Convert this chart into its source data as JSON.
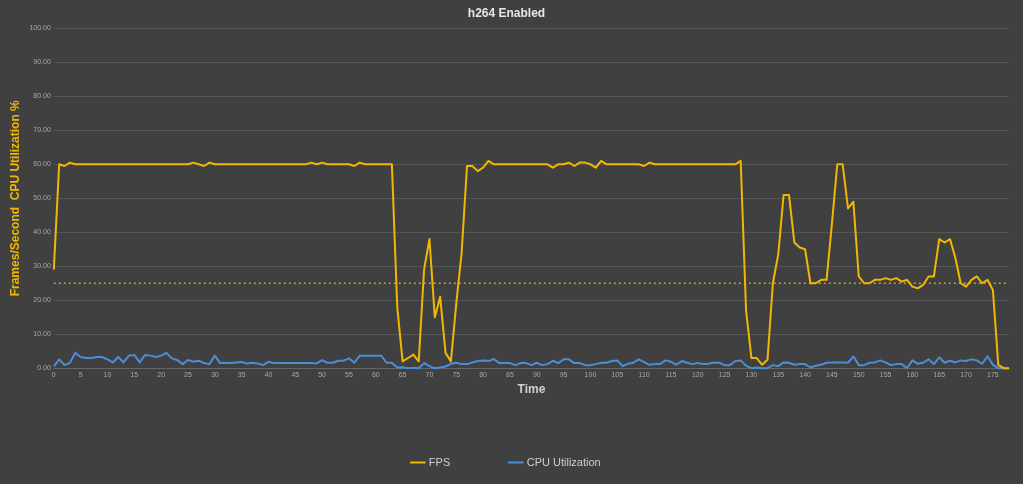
{
  "chart_data": {
    "type": "line",
    "title": "h264 Enabled",
    "xlabel": "Time",
    "ylabel": "Frames/Second  CPU Utilization %",
    "x": [
      0,
      1,
      2,
      3,
      4,
      5,
      6,
      7,
      8,
      9,
      10,
      11,
      12,
      13,
      14,
      15,
      16,
      17,
      18,
      19,
      20,
      21,
      22,
      23,
      24,
      25,
      26,
      27,
      28,
      29,
      30,
      31,
      32,
      33,
      34,
      35,
      36,
      37,
      38,
      39,
      40,
      41,
      42,
      43,
      44,
      45,
      46,
      47,
      48,
      49,
      50,
      51,
      52,
      53,
      54,
      55,
      56,
      57,
      58,
      59,
      60,
      61,
      62,
      63,
      64,
      65,
      66,
      67,
      68,
      69,
      70,
      71,
      72,
      73,
      74,
      75,
      76,
      77,
      78,
      79,
      80,
      81,
      82,
      83,
      84,
      85,
      86,
      87,
      88,
      89,
      90,
      91,
      92,
      93,
      94,
      95,
      96,
      97,
      98,
      99,
      100,
      101,
      102,
      103,
      104,
      105,
      106,
      107,
      108,
      109,
      110,
      111,
      112,
      113,
      114,
      115,
      116,
      117,
      118,
      119,
      120,
      121,
      122,
      123,
      124,
      125,
      126,
      127,
      128,
      129,
      130,
      131,
      132,
      133,
      134,
      135,
      136,
      137,
      138,
      139,
      140,
      141,
      142,
      143,
      144,
      145,
      146,
      147,
      148,
      149,
      150,
      151,
      152,
      153,
      154,
      155,
      156,
      157,
      158,
      159,
      160,
      161,
      162,
      163,
      164,
      165,
      166,
      167,
      168,
      169,
      170,
      171,
      172,
      173,
      174,
      175,
      176,
      177,
      178
    ],
    "series": [
      {
        "name": "FPS",
        "color": "#f2b700",
        "values": [
          29,
          60,
          59.5,
          60.5,
          60,
          60,
          60,
          60,
          60,
          60,
          60,
          60,
          60,
          60,
          60,
          60,
          60,
          60,
          60,
          60,
          60,
          60,
          60,
          60,
          60,
          60,
          60.5,
          60,
          59.5,
          60.5,
          60,
          60,
          60,
          60,
          60,
          60,
          60,
          60,
          60,
          60,
          60,
          60,
          60,
          60,
          60,
          60,
          60,
          60,
          60.5,
          60,
          60.5,
          60,
          60,
          60,
          60,
          60,
          59.5,
          60.5,
          60,
          60,
          60,
          60,
          60,
          60,
          18,
          2,
          3,
          4,
          2,
          29,
          38,
          15,
          21,
          4.5,
          2,
          19,
          34,
          59.5,
          59.5,
          58,
          59,
          61,
          60,
          60,
          60,
          60,
          60,
          60,
          60,
          60,
          60,
          60,
          60,
          59,
          60,
          60,
          60.5,
          59.5,
          60.5,
          60.5,
          60,
          59,
          61,
          60,
          60,
          60,
          60,
          60,
          60,
          60,
          59.5,
          60.5,
          60,
          60,
          60,
          60,
          60,
          60,
          60,
          60,
          60,
          60,
          60,
          60,
          60,
          60,
          60,
          60,
          61,
          17,
          3,
          3,
          1,
          2.5,
          25,
          33.5,
          51,
          51,
          37,
          35.5,
          35,
          25,
          25,
          26,
          26,
          42.5,
          60,
          60,
          47,
          49,
          27,
          25,
          25,
          26,
          26,
          26.5,
          26,
          26.5,
          25.5,
          26,
          24,
          23.5,
          24.5,
          27,
          27,
          38,
          37,
          38,
          32.5,
          25,
          24,
          26,
          27,
          25,
          26,
          23,
          1,
          0,
          0
        ]
      },
      {
        "name": "CPU Utilization",
        "color": "#4a8fd6",
        "values": [
          0.5,
          2.6,
          0.9,
          1.6,
          4.5,
          3.3,
          3,
          3,
          3.3,
          3.3,
          2.6,
          1.7,
          3.3,
          1.7,
          3.7,
          3.9,
          1.7,
          3.9,
          3.7,
          3.3,
          3.7,
          4.5,
          2.9,
          2.4,
          1.2,
          2.4,
          1.9,
          2.2,
          1.5,
          1.2,
          3.7,
          1.5,
          1.6,
          1.5,
          1.7,
          1.8,
          1.4,
          1.6,
          1.4,
          0.9,
          1.9,
          1.5,
          1.5,
          1.5,
          1.5,
          1.5,
          1.5,
          1.5,
          1.5,
          1.4,
          2.4,
          1.6,
          1.6,
          2.2,
          2.2,
          2.9,
          1.6,
          3.7,
          3.7,
          3.7,
          3.7,
          3.7,
          1.6,
          1.6,
          0.2,
          0.3,
          0,
          0.1,
          0,
          1.5,
          0.6,
          0,
          0.2,
          0.5,
          1.3,
          1.6,
          1.2,
          1.2,
          1.7,
          2.1,
          2.3,
          2.1,
          2.7,
          1.5,
          1.5,
          1.5,
          0.9,
          1.5,
          1.5,
          0.9,
          1.6,
          0.9,
          1.2,
          2.2,
          1.5,
          2.6,
          2.6,
          1.5,
          1.5,
          0.9,
          0.9,
          1.2,
          1.6,
          1.6,
          2.1,
          2.3,
          0.6,
          1.3,
          1.6,
          2.6,
          1.8,
          1,
          1.2,
          1.2,
          2.3,
          1.9,
          1,
          2.1,
          1.6,
          1.2,
          1.5,
          1.2,
          1.3,
          1.7,
          1.6,
          0.9,
          0.9,
          2.1,
          2.3,
          0.7,
          0,
          0.2,
          0,
          0,
          0.9,
          0.6,
          1.7,
          1.6,
          1,
          1.2,
          1.2,
          0.2,
          0.7,
          1,
          1.6,
          1.7,
          1.7,
          1.7,
          1.6,
          3.5,
          0.9,
          0.9,
          1.6,
          1.7,
          2.3,
          1.7,
          0.9,
          1.2,
          1.2,
          0,
          2.3,
          1.3,
          1.6,
          2.6,
          1.2,
          3.2,
          1.6,
          2.2,
          1.7,
          2.3,
          2.1,
          2.6,
          2.3,
          1.3,
          3.5,
          1,
          0,
          0,
          0
        ]
      }
    ],
    "xlim": [
      0,
      178
    ],
    "xticks": [
      0,
      5,
      10,
      15,
      20,
      25,
      30,
      35,
      40,
      45,
      50,
      55,
      60,
      65,
      70,
      75,
      80,
      85,
      90,
      95,
      100,
      105,
      110,
      115,
      120,
      125,
      130,
      135,
      140,
      145,
      150,
      155,
      160,
      165,
      170,
      175
    ],
    "ylim": [
      0,
      100
    ],
    "yticks": [
      {
        "value": 0,
        "label": "0.00"
      },
      {
        "value": 10,
        "label": "10.00"
      },
      {
        "value": 20,
        "label": "20.00"
      },
      {
        "value": 30,
        "label": "30.00"
      },
      {
        "value": 40,
        "label": "40.00"
      },
      {
        "value": 50,
        "label": "50.00"
      },
      {
        "value": 60,
        "label": "60.00"
      },
      {
        "value": 70,
        "label": "70.00"
      },
      {
        "value": 80,
        "label": "80.00"
      },
      {
        "value": 90,
        "label": "90.00"
      },
      {
        "value": 100,
        "label": "100.00"
      }
    ],
    "ref_lines": [
      {
        "axis": "y",
        "value": 25,
        "color": "#c9a227",
        "line_style": "dotted"
      }
    ],
    "grid": "y",
    "legend": "bottom",
    "marker": "none",
    "line_style": "solid"
  }
}
